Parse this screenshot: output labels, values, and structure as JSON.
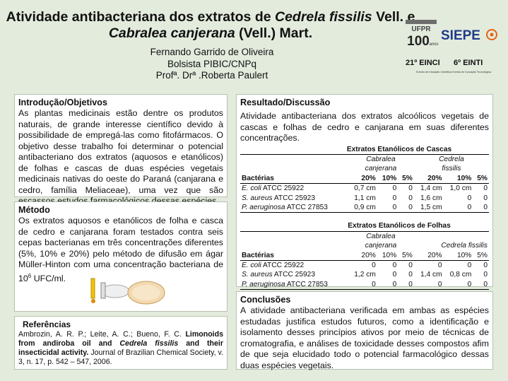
{
  "header": {
    "title_part1": "Atividade antibacteriana dos extratos de ",
    "title_italic1": "Cedrela fissilis",
    "title_part2": " Vell. e ",
    "title_italic2": "Cabralea canjerana",
    "title_part3": " (Vell.) Mart.",
    "author": "Fernando Garrido de Oliveira",
    "role": "Bolsista PIBIC/CNPq",
    "advisor": "Profª. Drª .Roberta Paulert"
  },
  "logos": {
    "ufpr": "UFPR",
    "ufpr_number": "100",
    "ufpr_years": "anos",
    "siepe": "SIEPE",
    "eventos_left": "21º EINCI",
    "eventos_right": "6º EINTI",
    "eventos_caption": "Evento de Iniciação Científica Evento de Inovação Tecnológica"
  },
  "intro": {
    "heading": "Introdução/Objetivos",
    "text": "As plantas medicinais estão dentre os produtos naturais, de grande interesse científico devido à possibilidade de empregá-las como fitofármacos. O objetivo desse trabalho foi determinar o potencial antibacteriano dos extratos (aquosos e etanólicos) de folhas e cascas de duas espécies vegetais medicinais nativas do oeste do Paraná (canjarana e cedro, família Meliaceae), uma vez que são escassos estudos farmacológicos dessas espécies."
  },
  "method": {
    "heading": "Método",
    "text_before": "Os extratos aquosos e etanólicos de folha e casca de cedro e canjarana foram testados contra seis cepas bacterianas em três concentrações diferentes (5%, 10% e 20%)  pelo método de difusão em ágar Müller-Hinton com uma concentração bacteriana de 10",
    "superscript": "6",
    "text_after": " UFC/ml."
  },
  "references": {
    "heading": "Referências",
    "authors": "Ambrozin, A. R. P.; Leite, A. C.; Bueno, F. C. ",
    "title_bold1": "Limonoids from andiroba oil and ",
    "title_bold_italic": "Cedrela fissilis",
    "title_bold2": " and their insecticidal activity.",
    "journal": " Journal of Brazilian Chemical Society, v. 3, n. 17, p. 542 – 547, 2006."
  },
  "results": {
    "heading": "Resultado/Discussão",
    "text": "Atividade antibacteriana dos extratos alcoólicos vegetais de cascas e folhas de cedro e canjarana em suas diferentes concentrações.",
    "table1": {
      "caption": "Extratos Etanólicos de Cascas",
      "species1_a": "Cabralea",
      "species1_b": "canjerana",
      "species2_a": "Cedrela",
      "species2_b": "fissilis",
      "col_header": "Bactérias",
      "concentrations": [
        "20%",
        "10%",
        "5%",
        "20%",
        "10%",
        "5%"
      ],
      "rows": [
        {
          "species": "E. coli",
          "strain": " ATCC 25922",
          "values": [
            "0,7 cm",
            "0",
            "0",
            "1,4 cm",
            "1,0 cm",
            "0"
          ]
        },
        {
          "species": "S. aureus",
          "strain": " ATCC 25923",
          "values": [
            "1,1 cm",
            "0",
            "0",
            "1,6 cm",
            "0",
            "0"
          ]
        },
        {
          "species": "P. aeruginosa",
          "strain": " ATCC 27853",
          "values": [
            "0,9 cm",
            "0",
            "0",
            "1,5 cm",
            "0",
            "0"
          ]
        }
      ]
    },
    "table2": {
      "caption": "Extratos Etanólicos de Folhas",
      "species1_a": "Cabralea",
      "species1_b": "canjerana",
      "species2": "Cedrela fissilis",
      "col_header": "Bactérias",
      "concentrations": [
        "20%",
        "10%",
        "5%",
        "20%",
        "10%",
        "5%"
      ],
      "rows": [
        {
          "species": "E. coli",
          "strain": " ATCC 25922",
          "values": [
            "0",
            "0",
            "0",
            "0",
            "0",
            "0"
          ]
        },
        {
          "species": "S. aureus",
          "strain": " ATCC 25923",
          "values": [
            "1,2 cm",
            "0",
            "0",
            "1,4 cm",
            "0,8 cm",
            "0"
          ]
        },
        {
          "species": "P. aeruginosa",
          "strain": " ATCC 27853",
          "values": [
            "0",
            "0",
            "0",
            "0",
            "0",
            "0"
          ]
        }
      ]
    }
  },
  "conclusions": {
    "heading": "Conclusões",
    "text": "A atividade antibacteriana verificada em ambas as espécies estudadas justifica estudos futuros, como a identificação e isolamento desses princípios ativos por meio de técnicas de cromatografia, e análises de toxicidade desses compostos afim de que seja elucidado todo o potencial farmacológico dessas duas espécies vegetais."
  }
}
